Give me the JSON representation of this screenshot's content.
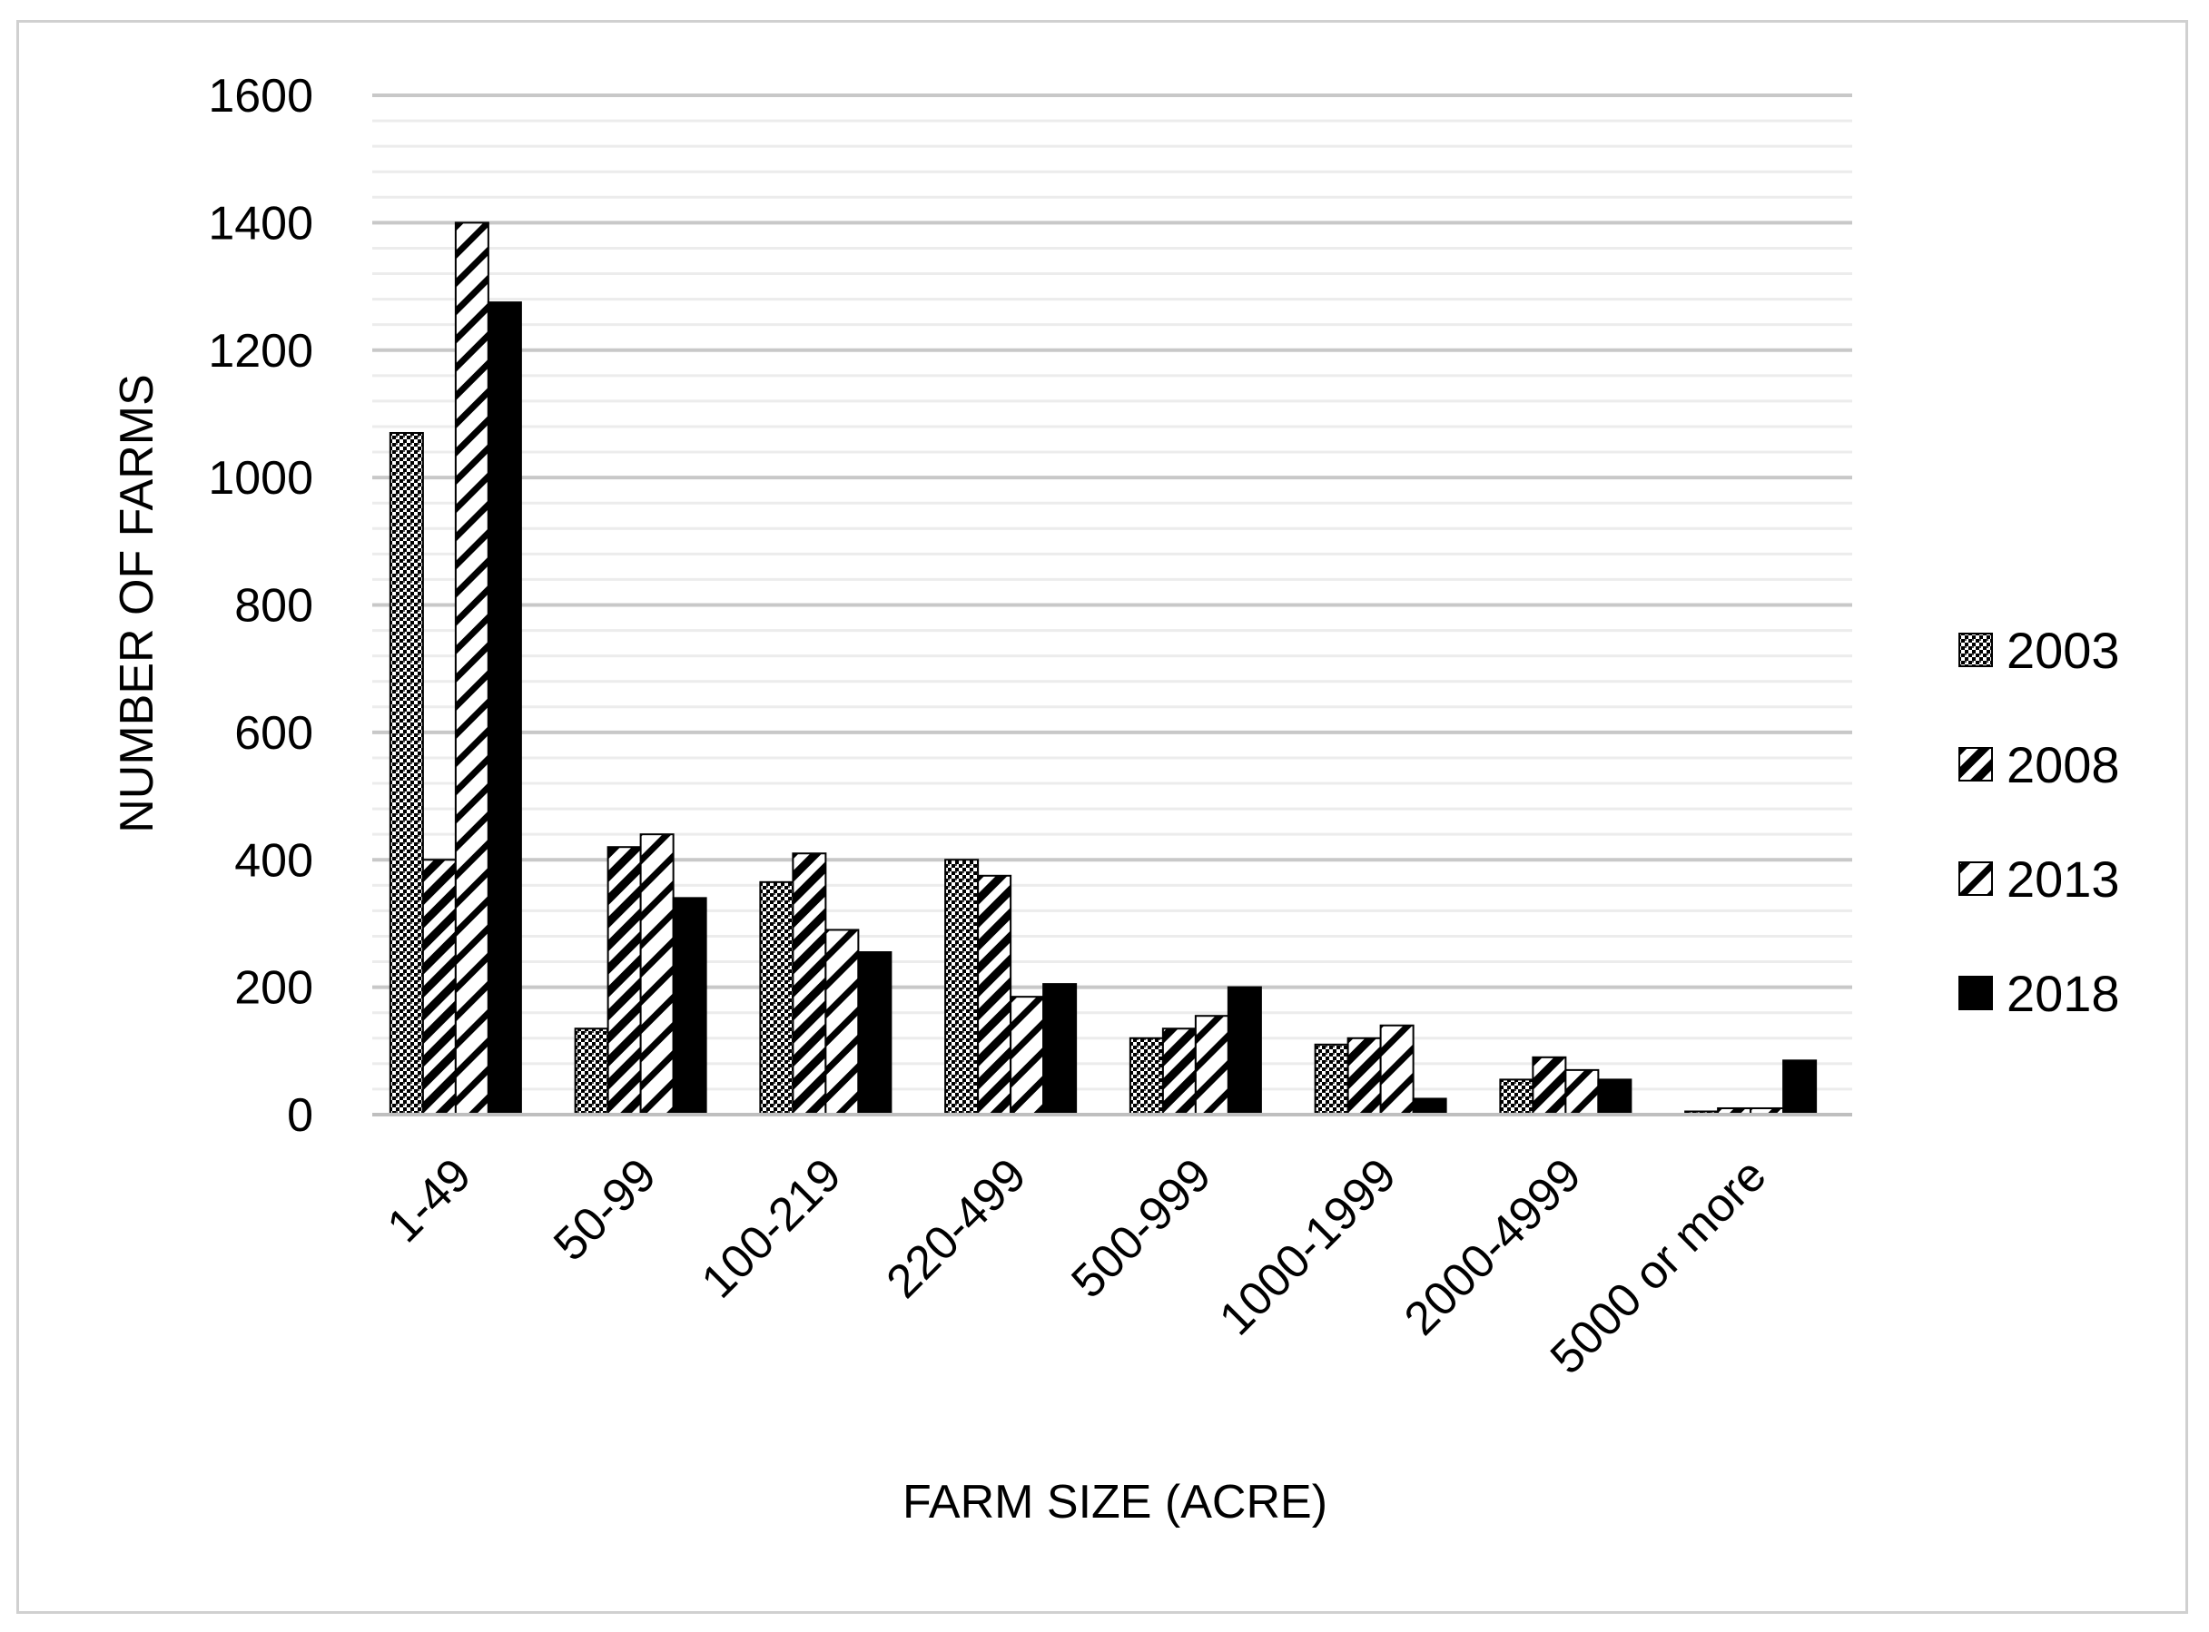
{
  "chart_data": {
    "type": "bar",
    "title": "",
    "xlabel": "FARM SIZE (ACRE)",
    "ylabel": "NUMBER OF FARMS",
    "ylim": [
      0,
      1600
    ],
    "yticks": [
      0,
      200,
      400,
      600,
      800,
      1000,
      1200,
      1400,
      1600
    ],
    "grid": "horizontal",
    "legend_position": "right",
    "categories": [
      "1-49",
      "50-99",
      "100-219",
      "220-499",
      "500-999",
      "1000-1999",
      "2000-4999",
      "5000 or more"
    ],
    "series": [
      {
        "name": "2003",
        "pattern": "dots",
        "values": [
          1070,
          135,
          365,
          400,
          120,
          110,
          55,
          5
        ]
      },
      {
        "name": "2008",
        "pattern": "diagonal",
        "values": [
          400,
          420,
          410,
          375,
          135,
          120,
          90,
          10
        ]
      },
      {
        "name": "2013",
        "pattern": "checker",
        "values": [
          1400,
          440,
          290,
          185,
          155,
          140,
          70,
          10
        ]
      },
      {
        "name": "2018",
        "pattern": "solid",
        "values": [
          1275,
          340,
          255,
          205,
          200,
          25,
          55,
          85
        ]
      }
    ]
  }
}
